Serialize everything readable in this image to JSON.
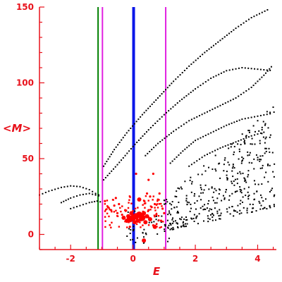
{
  "chart_data": {
    "type": "scatter",
    "title": "",
    "xlabel": "E",
    "ylabel": "<M>",
    "xlim": [
      -3,
      4.6
    ],
    "ylim": [
      -10,
      150
    ],
    "xticks": [
      -2,
      0,
      2,
      4
    ],
    "xtick_labels": [
      "-2",
      "0",
      "2",
      "4"
    ],
    "yticks": [
      0,
      50,
      100,
      150
    ],
    "ytick_labels": [
      "0",
      "50",
      "100",
      "150"
    ],
    "grid": false,
    "axis_color": "#e8101a",
    "vertical_lines": [
      {
        "x": -1.12,
        "color": "#008000",
        "width": 2
      },
      {
        "x": -0.98,
        "color": "#e020e0",
        "width": 2
      },
      {
        "x": 0.02,
        "color": "#0a16e8",
        "width": 4
      },
      {
        "x": 1.05,
        "color": "#e020e0",
        "width": 2
      }
    ],
    "curves": [
      {
        "color": "#000000",
        "points": [
          [
            -0.94,
            45
          ],
          [
            -0.6,
            56
          ],
          [
            -0.2,
            67
          ],
          [
            0.3,
            79
          ],
          [
            0.8,
            90
          ],
          [
            1.3,
            101
          ],
          [
            1.8,
            111
          ],
          [
            2.3,
            120
          ],
          [
            2.8,
            128
          ],
          [
            3.3,
            136
          ],
          [
            3.8,
            143
          ],
          [
            4.4,
            149
          ]
        ]
      },
      {
        "color": "#000000",
        "points": [
          [
            -0.94,
            36
          ],
          [
            -0.5,
            46
          ],
          [
            0.0,
            58
          ],
          [
            0.5,
            69
          ],
          [
            1.0,
            79
          ],
          [
            1.5,
            88
          ],
          [
            2.0,
            96
          ],
          [
            2.5,
            103
          ],
          [
            3.0,
            108
          ],
          [
            3.5,
            110
          ],
          [
            4.0,
            109
          ],
          [
            4.5,
            108
          ]
        ]
      },
      {
        "color": "#000000",
        "points": [
          [
            0.4,
            52
          ],
          [
            0.8,
            60
          ],
          [
            1.3,
            68
          ],
          [
            1.8,
            75
          ],
          [
            2.3,
            80
          ],
          [
            2.8,
            85
          ],
          [
            3.3,
            90
          ],
          [
            3.8,
            97
          ],
          [
            4.2,
            105
          ],
          [
            4.5,
            112
          ]
        ]
      },
      {
        "color": "#000000",
        "points": [
          [
            1.2,
            47
          ],
          [
            1.6,
            55
          ],
          [
            2.0,
            62
          ],
          [
            2.5,
            67
          ],
          [
            3.0,
            72
          ],
          [
            3.5,
            76
          ],
          [
            4.0,
            78
          ],
          [
            4.5,
            80
          ]
        ]
      },
      {
        "color": "#000000",
        "points": [
          [
            1.8,
            45
          ],
          [
            2.3,
            52
          ],
          [
            2.8,
            57
          ],
          [
            3.3,
            61
          ],
          [
            3.8,
            65
          ],
          [
            4.3,
            68
          ]
        ]
      },
      {
        "color": "#000000",
        "points": [
          [
            -3.0,
            26
          ],
          [
            -2.7,
            28.5
          ],
          [
            -2.3,
            31
          ],
          [
            -2.0,
            32
          ],
          [
            -1.7,
            31.5
          ],
          [
            -1.4,
            29.5
          ],
          [
            -1.2,
            27
          ],
          [
            -1.0,
            25
          ]
        ]
      },
      {
        "color": "#000000",
        "points": [
          [
            -2.3,
            21
          ],
          [
            -2.0,
            24
          ],
          [
            -1.7,
            26
          ],
          [
            -1.4,
            27
          ],
          [
            -1.2,
            26
          ],
          [
            -1.0,
            25
          ]
        ]
      },
      {
        "color": "#000000",
        "points": [
          [
            -2.0,
            17
          ],
          [
            -1.7,
            19
          ],
          [
            -1.4,
            21
          ],
          [
            -1.15,
            22
          ],
          [
            -0.95,
            21
          ]
        ]
      }
    ],
    "red_points": [
      {
        "x": -0.8,
        "y": 18,
        "s": 1
      },
      {
        "x": -0.7,
        "y": 16,
        "s": 1
      },
      {
        "x": -0.6,
        "y": 19,
        "s": 1
      },
      {
        "x": -0.5,
        "y": 14,
        "s": 1
      },
      {
        "x": -0.45,
        "y": 20,
        "s": 1
      },
      {
        "x": -0.35,
        "y": 13,
        "s": 1
      },
      {
        "x": -0.3,
        "y": 11,
        "s": 2
      },
      {
        "x": -0.25,
        "y": 16,
        "s": 1
      },
      {
        "x": -0.2,
        "y": 9,
        "s": 2
      },
      {
        "x": -0.15,
        "y": 12,
        "s": 2
      },
      {
        "x": -0.1,
        "y": 10,
        "s": 3
      },
      {
        "x": -0.05,
        "y": 14,
        "s": 2
      },
      {
        "x": 0.0,
        "y": 11,
        "s": 3
      },
      {
        "x": 0.05,
        "y": 8,
        "s": 2
      },
      {
        "x": 0.1,
        "y": 12,
        "s": 3
      },
      {
        "x": 0.15,
        "y": 9,
        "s": 2
      },
      {
        "x": 0.2,
        "y": 13,
        "s": 3
      },
      {
        "x": 0.25,
        "y": 10,
        "s": 2
      },
      {
        "x": 0.3,
        "y": 11,
        "s": 3
      },
      {
        "x": 0.35,
        "y": 14,
        "s": 2
      },
      {
        "x": 0.4,
        "y": 8,
        "s": 2
      },
      {
        "x": 0.45,
        "y": 12,
        "s": 2
      },
      {
        "x": 0.5,
        "y": 16,
        "s": 1
      },
      {
        "x": 0.55,
        "y": 10,
        "s": 2
      },
      {
        "x": 0.6,
        "y": 18,
        "s": 1
      },
      {
        "x": 0.65,
        "y": 6,
        "s": 1
      },
      {
        "x": 0.7,
        "y": 20,
        "s": 1
      },
      {
        "x": 0.75,
        "y": 13,
        "s": 1
      },
      {
        "x": 0.8,
        "y": 23,
        "s": 1
      },
      {
        "x": 0.9,
        "y": 9,
        "s": 1
      },
      {
        "x": 0.95,
        "y": 17,
        "s": 1
      },
      {
        "x": 1.0,
        "y": 14,
        "s": 1
      },
      {
        "x": 0.2,
        "y": 23,
        "s": 2
      },
      {
        "x": 0.45,
        "y": 27,
        "s": 1
      },
      {
        "x": 0.65,
        "y": 40,
        "s": 1
      },
      {
        "x": 0.5,
        "y": 36,
        "s": 1
      },
      {
        "x": 0.35,
        "y": -4,
        "s": 2
      },
      {
        "x": 0.7,
        "y": 5,
        "s": 2
      },
      {
        "x": -0.1,
        "y": 5,
        "s": 1
      },
      {
        "x": 0.55,
        "y": 25,
        "s": 1
      },
      {
        "x": -0.9,
        "y": 22,
        "s": 1
      },
      {
        "x": -0.55,
        "y": 24,
        "s": 1
      },
      {
        "x": 0.85,
        "y": 27,
        "s": 1
      },
      {
        "x": 0.1,
        "y": 40,
        "s": 1
      }
    ]
  }
}
